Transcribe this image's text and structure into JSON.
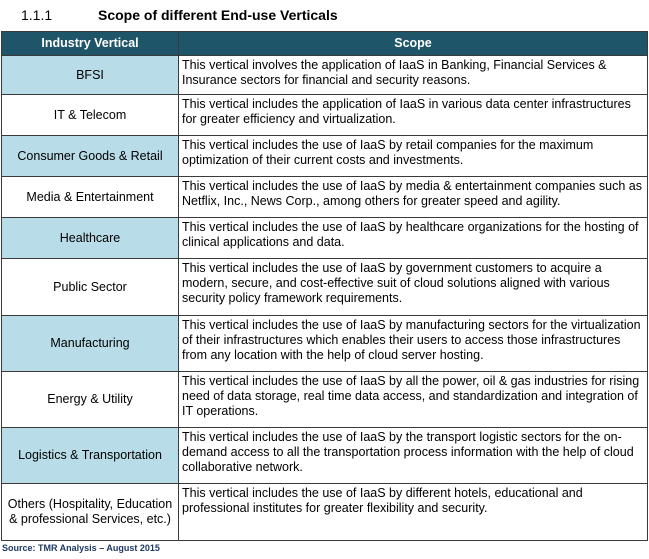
{
  "header": {
    "number": "1.1.1",
    "title": "Scope of different End-use Verticals"
  },
  "table": {
    "columns": [
      "Industry Vertical",
      "Scope"
    ],
    "rows": [
      [
        "BFSI",
        "This vertical involves the application of IaaS in Banking, Financial Services & Insurance sectors for financial and security reasons."
      ],
      [
        "IT & Telecom",
        "This vertical includes the application of IaaS in various data center infrastructures for greater efficiency and virtualization."
      ],
      [
        "Consumer Goods & Retail",
        "This vertical includes the use of IaaS by retail companies for the maximum optimization of their current costs and investments."
      ],
      [
        "Media & Entertainment",
        "This vertical includes the use of IaaS by media & entertainment companies such as Netflix, Inc., News Corp., among others for greater speed and agility."
      ],
      [
        "Healthcare",
        "This vertical includes the use of IaaS by healthcare organizations for the hosting of clinical applications and data."
      ],
      [
        "Public Sector",
        "This vertical includes the use of IaaS by government customers to acquire a modern, secure, and cost-effective suit of cloud solutions aligned with various security policy framework requirements."
      ],
      [
        "Manufacturing",
        "This vertical includes the use of IaaS by manufacturing sectors for the virtualization of their infrastructures which enables their users to access those infrastructures from any location with the help of cloud server hosting."
      ],
      [
        "Energy & Utility",
        "This vertical includes the use of IaaS by all the power, oil & gas industries for rising need of data storage, real time data access, and standardization and integration of IT operations."
      ],
      [
        "Logistics & Transportation",
        "This vertical includes the use of IaaS by the transport logistic sectors for the on-demand access to all the transportation process information with the help of cloud collaborative network."
      ],
      [
        "Others (Hospitality, Education & professional Services, etc.)",
        "This vertical includes the use of IaaS by different hotels, educational and professional institutes for greater flexibility and security."
      ]
    ]
  },
  "source": "Source: TMR Analysis – August 2015"
}
